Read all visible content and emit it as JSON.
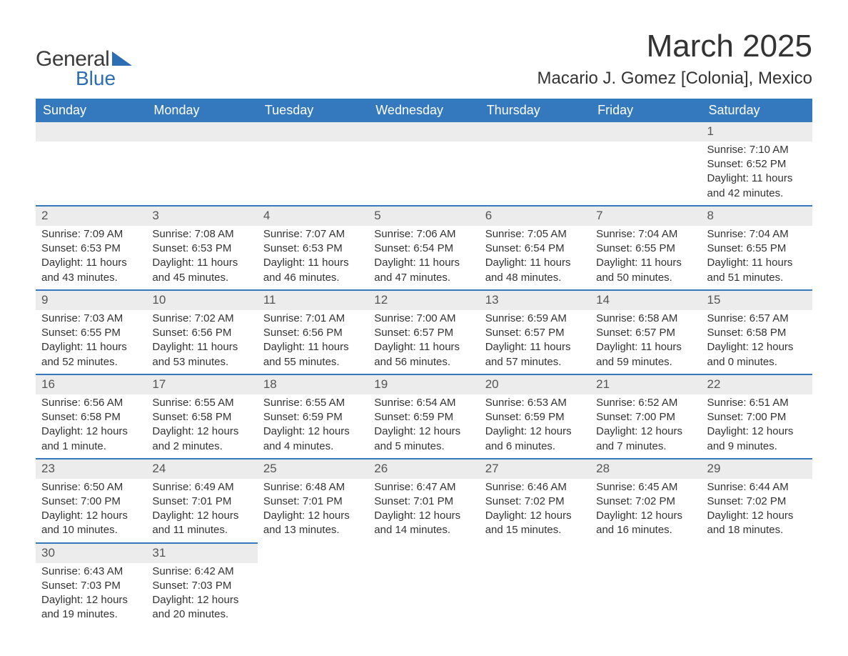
{
  "logo": {
    "text1": "General",
    "text2": "Blue",
    "tri_color": "#2c6db3"
  },
  "title": "March 2025",
  "location": "Macario J. Gomez [Colonia], Mexico",
  "colors": {
    "header_bg": "#3478bd",
    "header_text": "#ffffff",
    "row_divider": "#3478bd",
    "daynum_bg": "#ececec",
    "text": "#333333"
  },
  "typography": {
    "title_fontsize": 44,
    "location_fontsize": 24,
    "th_fontsize": 18,
    "cell_fontsize": 15
  },
  "day_headers": [
    "Sunday",
    "Monday",
    "Tuesday",
    "Wednesday",
    "Thursday",
    "Friday",
    "Saturday"
  ],
  "weeks": [
    [
      null,
      null,
      null,
      null,
      null,
      null,
      {
        "n": "1",
        "sunrise": "Sunrise: 7:10 AM",
        "sunset": "Sunset: 6:52 PM",
        "day1": "Daylight: 11 hours",
        "day2": "and 42 minutes."
      }
    ],
    [
      {
        "n": "2",
        "sunrise": "Sunrise: 7:09 AM",
        "sunset": "Sunset: 6:53 PM",
        "day1": "Daylight: 11 hours",
        "day2": "and 43 minutes."
      },
      {
        "n": "3",
        "sunrise": "Sunrise: 7:08 AM",
        "sunset": "Sunset: 6:53 PM",
        "day1": "Daylight: 11 hours",
        "day2": "and 45 minutes."
      },
      {
        "n": "4",
        "sunrise": "Sunrise: 7:07 AM",
        "sunset": "Sunset: 6:53 PM",
        "day1": "Daylight: 11 hours",
        "day2": "and 46 minutes."
      },
      {
        "n": "5",
        "sunrise": "Sunrise: 7:06 AM",
        "sunset": "Sunset: 6:54 PM",
        "day1": "Daylight: 11 hours",
        "day2": "and 47 minutes."
      },
      {
        "n": "6",
        "sunrise": "Sunrise: 7:05 AM",
        "sunset": "Sunset: 6:54 PM",
        "day1": "Daylight: 11 hours",
        "day2": "and 48 minutes."
      },
      {
        "n": "7",
        "sunrise": "Sunrise: 7:04 AM",
        "sunset": "Sunset: 6:55 PM",
        "day1": "Daylight: 11 hours",
        "day2": "and 50 minutes."
      },
      {
        "n": "8",
        "sunrise": "Sunrise: 7:04 AM",
        "sunset": "Sunset: 6:55 PM",
        "day1": "Daylight: 11 hours",
        "day2": "and 51 minutes."
      }
    ],
    [
      {
        "n": "9",
        "sunrise": "Sunrise: 7:03 AM",
        "sunset": "Sunset: 6:55 PM",
        "day1": "Daylight: 11 hours",
        "day2": "and 52 minutes."
      },
      {
        "n": "10",
        "sunrise": "Sunrise: 7:02 AM",
        "sunset": "Sunset: 6:56 PM",
        "day1": "Daylight: 11 hours",
        "day2": "and 53 minutes."
      },
      {
        "n": "11",
        "sunrise": "Sunrise: 7:01 AM",
        "sunset": "Sunset: 6:56 PM",
        "day1": "Daylight: 11 hours",
        "day2": "and 55 minutes."
      },
      {
        "n": "12",
        "sunrise": "Sunrise: 7:00 AM",
        "sunset": "Sunset: 6:57 PM",
        "day1": "Daylight: 11 hours",
        "day2": "and 56 minutes."
      },
      {
        "n": "13",
        "sunrise": "Sunrise: 6:59 AM",
        "sunset": "Sunset: 6:57 PM",
        "day1": "Daylight: 11 hours",
        "day2": "and 57 minutes."
      },
      {
        "n": "14",
        "sunrise": "Sunrise: 6:58 AM",
        "sunset": "Sunset: 6:57 PM",
        "day1": "Daylight: 11 hours",
        "day2": "and 59 minutes."
      },
      {
        "n": "15",
        "sunrise": "Sunrise: 6:57 AM",
        "sunset": "Sunset: 6:58 PM",
        "day1": "Daylight: 12 hours",
        "day2": "and 0 minutes."
      }
    ],
    [
      {
        "n": "16",
        "sunrise": "Sunrise: 6:56 AM",
        "sunset": "Sunset: 6:58 PM",
        "day1": "Daylight: 12 hours",
        "day2": "and 1 minute."
      },
      {
        "n": "17",
        "sunrise": "Sunrise: 6:55 AM",
        "sunset": "Sunset: 6:58 PM",
        "day1": "Daylight: 12 hours",
        "day2": "and 2 minutes."
      },
      {
        "n": "18",
        "sunrise": "Sunrise: 6:55 AM",
        "sunset": "Sunset: 6:59 PM",
        "day1": "Daylight: 12 hours",
        "day2": "and 4 minutes."
      },
      {
        "n": "19",
        "sunrise": "Sunrise: 6:54 AM",
        "sunset": "Sunset: 6:59 PM",
        "day1": "Daylight: 12 hours",
        "day2": "and 5 minutes."
      },
      {
        "n": "20",
        "sunrise": "Sunrise: 6:53 AM",
        "sunset": "Sunset: 6:59 PM",
        "day1": "Daylight: 12 hours",
        "day2": "and 6 minutes."
      },
      {
        "n": "21",
        "sunrise": "Sunrise: 6:52 AM",
        "sunset": "Sunset: 7:00 PM",
        "day1": "Daylight: 12 hours",
        "day2": "and 7 minutes."
      },
      {
        "n": "22",
        "sunrise": "Sunrise: 6:51 AM",
        "sunset": "Sunset: 7:00 PM",
        "day1": "Daylight: 12 hours",
        "day2": "and 9 minutes."
      }
    ],
    [
      {
        "n": "23",
        "sunrise": "Sunrise: 6:50 AM",
        "sunset": "Sunset: 7:00 PM",
        "day1": "Daylight: 12 hours",
        "day2": "and 10 minutes."
      },
      {
        "n": "24",
        "sunrise": "Sunrise: 6:49 AM",
        "sunset": "Sunset: 7:01 PM",
        "day1": "Daylight: 12 hours",
        "day2": "and 11 minutes."
      },
      {
        "n": "25",
        "sunrise": "Sunrise: 6:48 AM",
        "sunset": "Sunset: 7:01 PM",
        "day1": "Daylight: 12 hours",
        "day2": "and 13 minutes."
      },
      {
        "n": "26",
        "sunrise": "Sunrise: 6:47 AM",
        "sunset": "Sunset: 7:01 PM",
        "day1": "Daylight: 12 hours",
        "day2": "and 14 minutes."
      },
      {
        "n": "27",
        "sunrise": "Sunrise: 6:46 AM",
        "sunset": "Sunset: 7:02 PM",
        "day1": "Daylight: 12 hours",
        "day2": "and 15 minutes."
      },
      {
        "n": "28",
        "sunrise": "Sunrise: 6:45 AM",
        "sunset": "Sunset: 7:02 PM",
        "day1": "Daylight: 12 hours",
        "day2": "and 16 minutes."
      },
      {
        "n": "29",
        "sunrise": "Sunrise: 6:44 AM",
        "sunset": "Sunset: 7:02 PM",
        "day1": "Daylight: 12 hours",
        "day2": "and 18 minutes."
      }
    ],
    [
      {
        "n": "30",
        "sunrise": "Sunrise: 6:43 AM",
        "sunset": "Sunset: 7:03 PM",
        "day1": "Daylight: 12 hours",
        "day2": "and 19 minutes."
      },
      {
        "n": "31",
        "sunrise": "Sunrise: 6:42 AM",
        "sunset": "Sunset: 7:03 PM",
        "day1": "Daylight: 12 hours",
        "day2": "and 20 minutes."
      },
      null,
      null,
      null,
      null,
      null
    ]
  ]
}
